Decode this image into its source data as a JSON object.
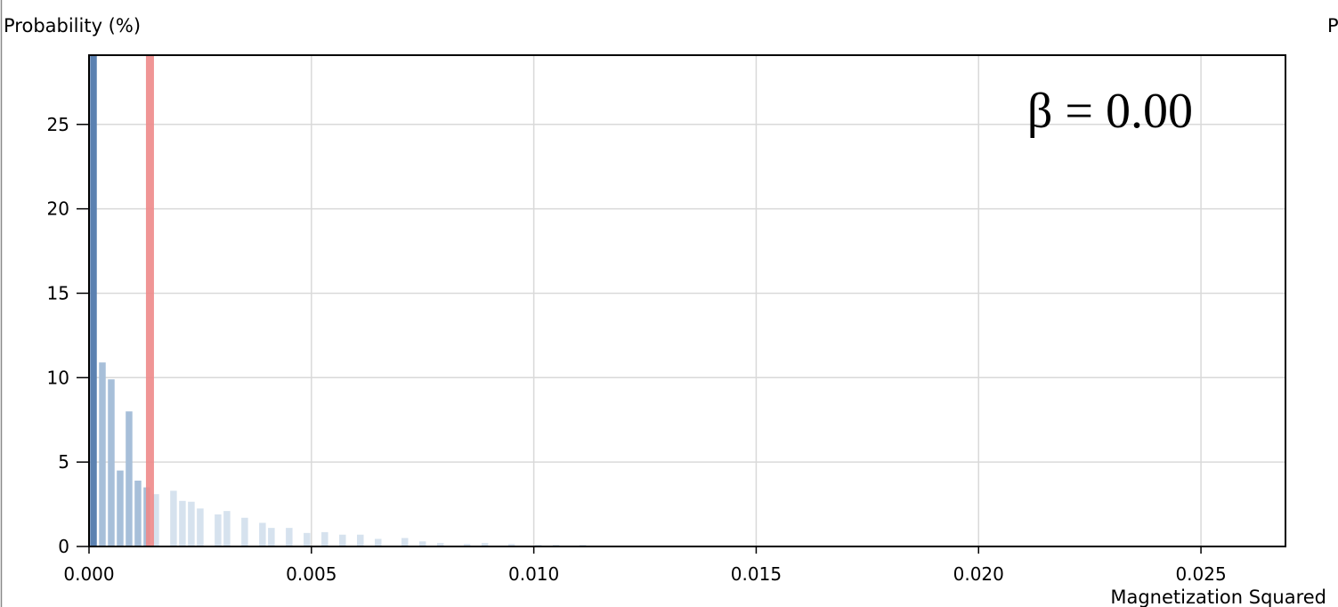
{
  "chart_data": {
    "type": "bar",
    "ylabel": "Probability (%)",
    "ylabel_right": "P",
    "xlabel": "Magnetization Squared",
    "annotation": "β = 0.00",
    "xlim": [
      0,
      0.0269
    ],
    "ylim": [
      0,
      29.1
    ],
    "x_ticks": [
      0,
      0.005,
      0.01,
      0.015,
      0.02,
      0.025
    ],
    "x_tick_labels": [
      "0.000",
      "0.005",
      "0.010",
      "0.015",
      "0.020",
      "0.025"
    ],
    "y_ticks": [
      0,
      5,
      10,
      15,
      20,
      25
    ],
    "y_tick_labels": [
      "0",
      "5",
      "10",
      "15",
      "20",
      "25"
    ],
    "grid": true,
    "bar_width": 0.00015,
    "bars": [
      {
        "x": 0.0001,
        "y": 29.1
      },
      {
        "x": 0.0003,
        "y": 10.9
      },
      {
        "x": 0.0005,
        "y": 9.9
      },
      {
        "x": 0.0007,
        "y": 4.5
      },
      {
        "x": 0.0009,
        "y": 8.0
      },
      {
        "x": 0.0011,
        "y": 3.9
      },
      {
        "x": 0.0013,
        "y": 3.5
      },
      {
        "x": 0.0015,
        "y": 3.1
      },
      {
        "x": 0.0019,
        "y": 3.3
      },
      {
        "x": 0.0021,
        "y": 2.7
      },
      {
        "x": 0.0023,
        "y": 2.65
      },
      {
        "x": 0.0025,
        "y": 2.25
      },
      {
        "x": 0.0029,
        "y": 1.9
      },
      {
        "x": 0.0031,
        "y": 2.1
      },
      {
        "x": 0.0035,
        "y": 1.7
      },
      {
        "x": 0.0039,
        "y": 1.4
      },
      {
        "x": 0.0041,
        "y": 1.1
      },
      {
        "x": 0.0045,
        "y": 1.1
      },
      {
        "x": 0.0049,
        "y": 0.8
      },
      {
        "x": 0.0053,
        "y": 0.85
      },
      {
        "x": 0.0057,
        "y": 0.7
      },
      {
        "x": 0.0061,
        "y": 0.7
      },
      {
        "x": 0.0065,
        "y": 0.45
      },
      {
        "x": 0.0071,
        "y": 0.5
      },
      {
        "x": 0.0075,
        "y": 0.3
      },
      {
        "x": 0.0079,
        "y": 0.2
      },
      {
        "x": 0.0085,
        "y": 0.15
      },
      {
        "x": 0.0089,
        "y": 0.2
      },
      {
        "x": 0.0095,
        "y": 0.15
      },
      {
        "x": 0.0101,
        "y": 0.1
      },
      {
        "x": 0.0105,
        "y": 0.1
      },
      {
        "x": 0.0111,
        "y": 0.1
      },
      {
        "x": 0.0117,
        "y": 0.05
      },
      {
        "x": 0.0123,
        "y": 0.05
      },
      {
        "x": 0.0135,
        "y": 0.05
      },
      {
        "x": 0.0155,
        "y": 0.05
      },
      {
        "x": 0.0169,
        "y": 0.05
      }
    ],
    "highlight_bar_x": 0.0001,
    "mean_line_x": 0.00137,
    "colors": {
      "bar_near": "#a7bfd9",
      "bar_far": "#d6e2ee",
      "bar_highlight": "#5b81b1",
      "mean_line": "#ee8a8a",
      "grid": "#d9d9d9",
      "frame": "#000000"
    }
  }
}
